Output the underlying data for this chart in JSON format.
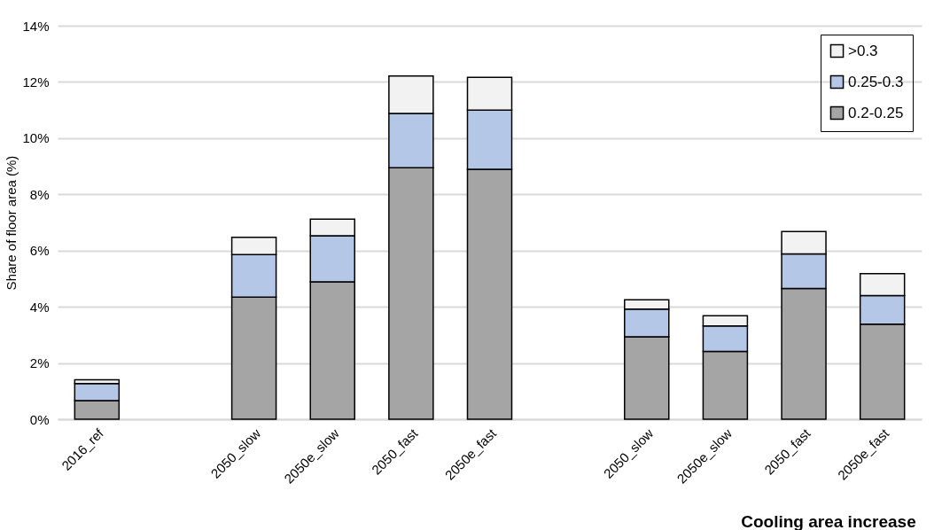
{
  "chart_data": {
    "type": "bar",
    "stacked": true,
    "ylabel": "Share of floor area (%)",
    "categories": [
      "2016_ref",
      null,
      "2050_slow",
      "2050e_slow",
      "2050_fast",
      "2050e_fast",
      null,
      "2050_slow",
      "2050e_slow",
      "2050_fast",
      "2050e_fast"
    ],
    "series": [
      {
        "name": "0.2-0.25",
        "color": "#a5a5a5",
        "values": [
          0.66,
          null,
          4.34,
          4.89,
          8.95,
          8.89,
          null,
          2.93,
          2.41,
          4.65,
          3.38
        ]
      },
      {
        "name": "0.25-0.3",
        "color": "#b4c7e7",
        "values": [
          0.61,
          null,
          1.52,
          1.64,
          1.93,
          2.11,
          null,
          0.99,
          0.91,
          1.23,
          1.02
        ]
      },
      {
        "name": ">0.3",
        "color": "#f2f2f2",
        "values": [
          0.13,
          null,
          0.61,
          0.59,
          1.33,
          1.16,
          null,
          0.33,
          0.36,
          0.8,
          0.78
        ]
      }
    ],
    "ylim": [
      0,
      14
    ],
    "yticks": [
      {
        "value": 0,
        "label": "0%"
      },
      {
        "value": 2,
        "label": "2%"
      },
      {
        "value": 4,
        "label": "4%"
      },
      {
        "value": 6,
        "label": "6%"
      },
      {
        "value": 8,
        "label": "8%"
      },
      {
        "value": 10,
        "label": "10%"
      },
      {
        "value": 12,
        "label": "12%"
      },
      {
        "value": 14,
        "label": "14%"
      }
    ],
    "grid": "y",
    "legend": "top right",
    "annotations": [
      "Cooling area increase"
    ]
  }
}
